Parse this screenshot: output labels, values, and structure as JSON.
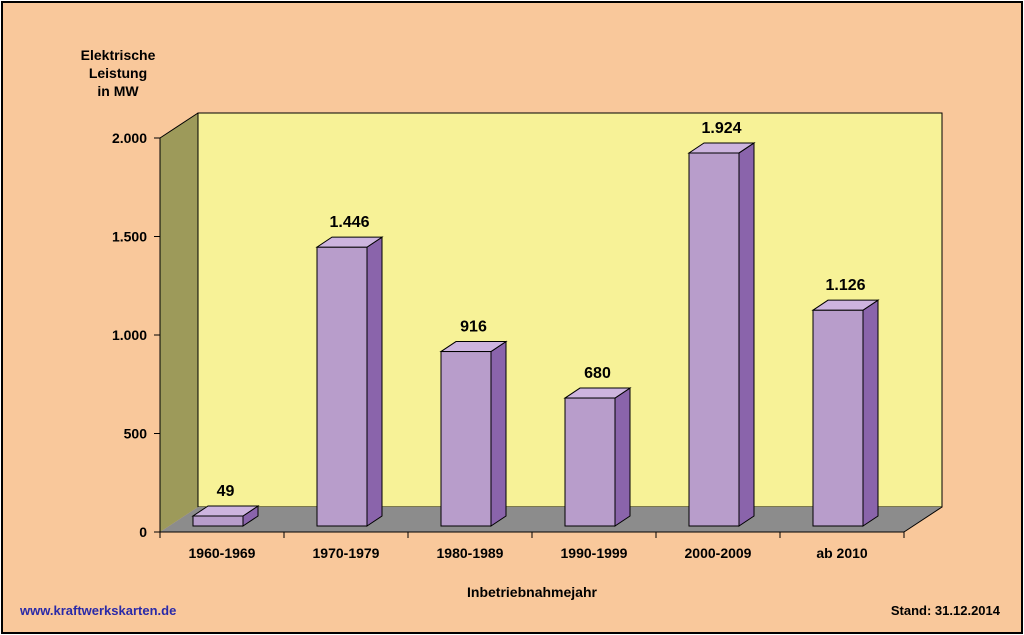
{
  "chart_data": {
    "type": "bar",
    "title": "",
    "ylabel": [
      "Elektrische",
      "Leistung",
      "in MW"
    ],
    "xlabel": "Inbetriebnahmejahr",
    "categories": [
      "1960-1969",
      "1970-1979",
      "1980-1989",
      "1990-1999",
      "2000-2009",
      "ab 2010"
    ],
    "values": [
      49,
      1446,
      916,
      680,
      1924,
      1126
    ],
    "value_labels": [
      "49",
      "1.446",
      "916",
      "680",
      "1.924",
      "1.126"
    ],
    "yticks": [
      0,
      500,
      1000,
      1500,
      2000
    ],
    "ytick_labels": [
      "0",
      "500",
      "1.000",
      "1.500",
      "2.000"
    ],
    "ylim": [
      0,
      2000
    ],
    "grid": false,
    "legend": "none",
    "style": "3d",
    "colors": {
      "bar_front": "#b89dcb",
      "bar_side": "#8a64ab",
      "bar_top": "#cdb4df",
      "back_wall": "#f7f297",
      "side_wall": "#9d9a5a",
      "floor": "#8c8c8c",
      "background": "#f9c89b"
    }
  },
  "footer": {
    "website": "www.kraftwerkskarten.de",
    "stand": "Stand: 31.12.2014"
  }
}
